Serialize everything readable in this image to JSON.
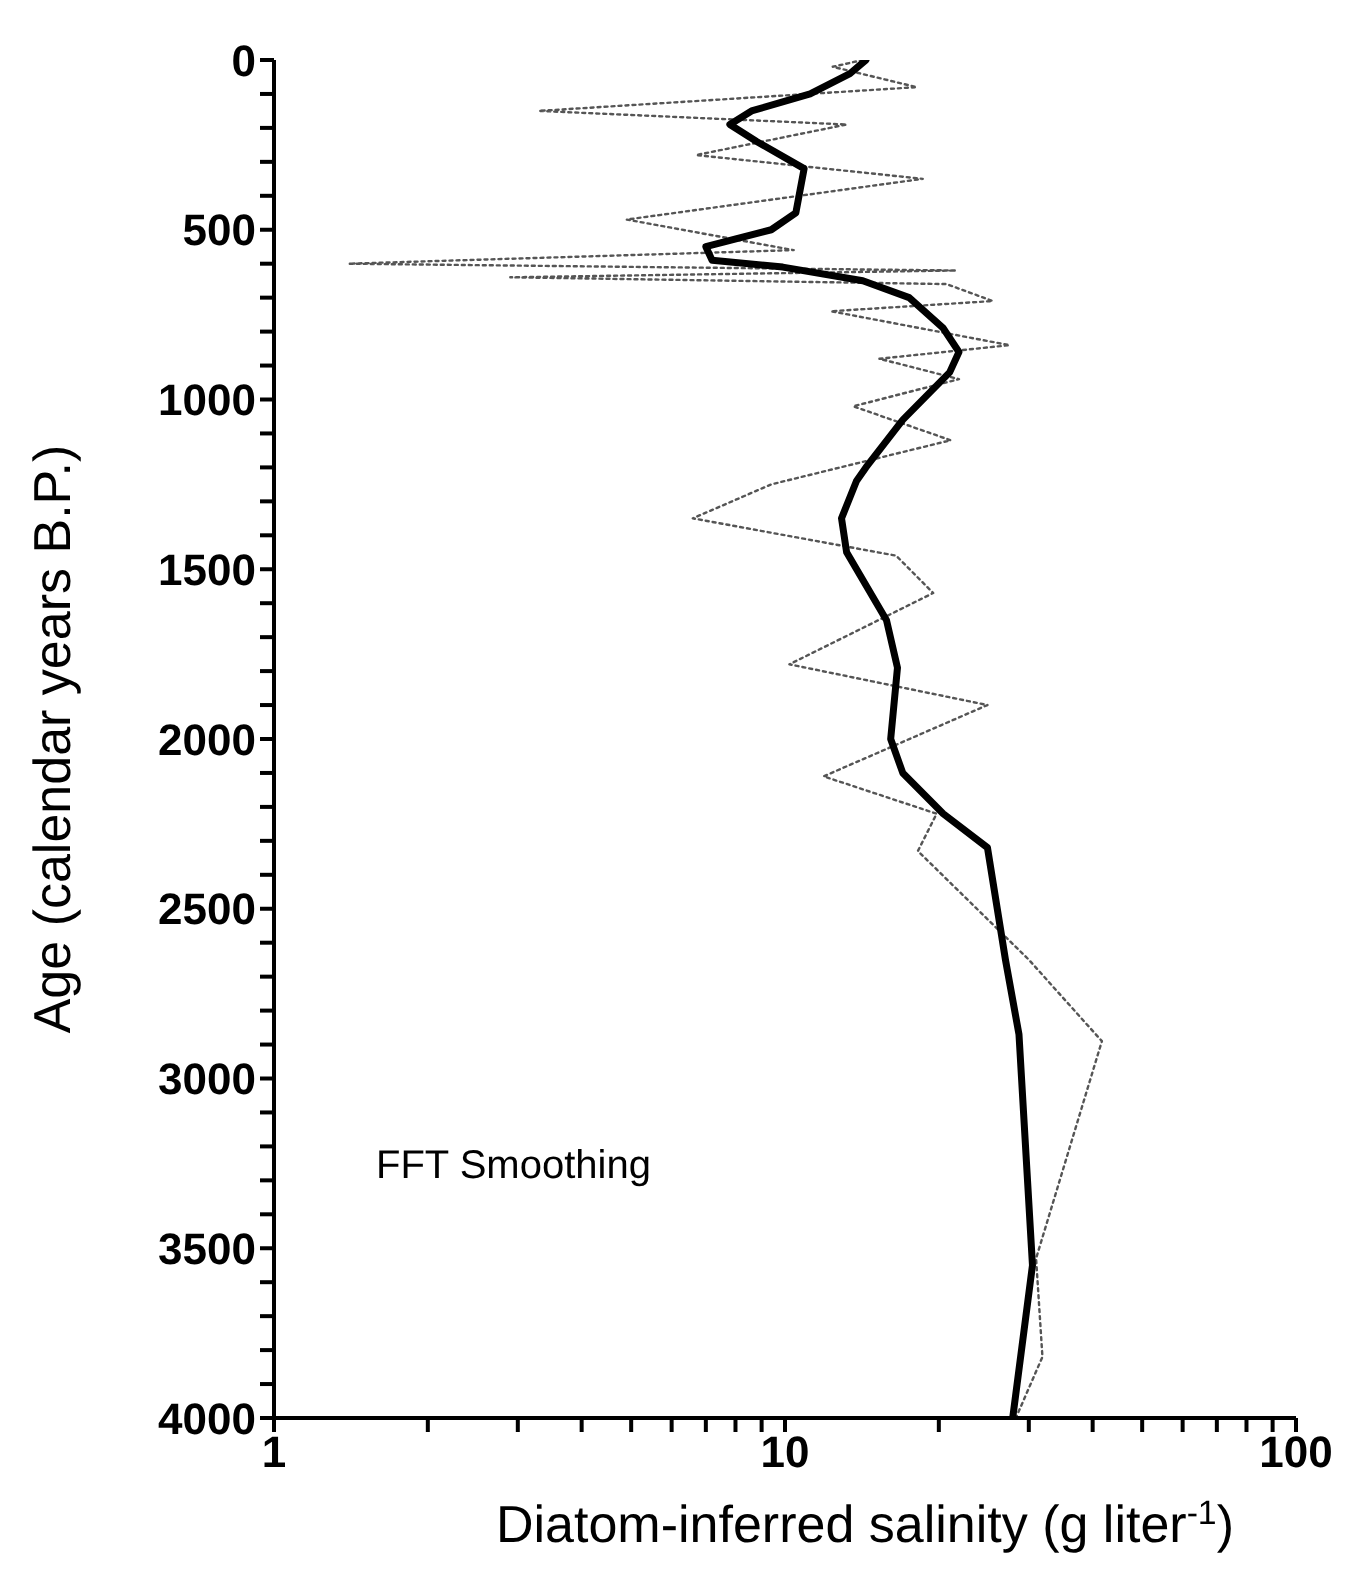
{
  "chart_data": {
    "type": "line",
    "xlabel": "Diatom-inferred salinity  (g liter$^{-1}$)",
    "ylabel": "Age (calendar years B.P.)",
    "log": "x",
    "xlim": [
      1,
      100
    ],
    "ylim": [
      4000,
      0
    ],
    "xticks": [
      1,
      {
        "value": 2,
        "label": null
      },
      {
        "value": 3,
        "label": null
      },
      {
        "value": 4,
        "label": null
      },
      {
        "value": 5,
        "label": null
      },
      {
        "value": 6,
        "label": null
      },
      {
        "value": 7,
        "label": null
      },
      {
        "value": 8,
        "label": null
      },
      {
        "value": 9,
        "label": null
      },
      10,
      {
        "value": 20,
        "label": null
      },
      {
        "value": 30,
        "label": null
      },
      {
        "value": 40,
        "label": null
      },
      {
        "value": 50,
        "label": null
      },
      {
        "value": 60,
        "label": null
      },
      {
        "value": 70,
        "label": null
      },
      {
        "value": 80,
        "label": null
      },
      {
        "value": 90,
        "label": null
      },
      100
    ],
    "yticks": [
      0,
      {
        "value": 100,
        "label": null
      },
      {
        "value": 200,
        "label": null
      },
      {
        "value": 300,
        "label": null
      },
      {
        "value": 400,
        "label": null
      },
      500,
      {
        "value": 600,
        "label": null
      },
      {
        "value": 700,
        "label": null
      },
      {
        "value": 800,
        "label": null
      },
      {
        "value": 900,
        "label": null
      },
      1000,
      {
        "value": 1100,
        "label": null
      },
      {
        "value": 1200,
        "label": null
      },
      {
        "value": 1300,
        "label": null
      },
      {
        "value": 1400,
        "label": null
      },
      1500,
      {
        "value": 1600,
        "label": null
      },
      {
        "value": 1700,
        "label": null
      },
      {
        "value": 1800,
        "label": null
      },
      {
        "value": 1900,
        "label": null
      },
      2000,
      {
        "value": 2100,
        "label": null
      },
      {
        "value": 2200,
        "label": null
      },
      {
        "value": 2300,
        "label": null
      },
      {
        "value": 2400,
        "label": null
      },
      2500,
      {
        "value": 2600,
        "label": null
      },
      {
        "value": 2700,
        "label": null
      },
      {
        "value": 2800,
        "label": null
      },
      {
        "value": 2900,
        "label": null
      },
      3000,
      {
        "value": 3100,
        "label": null
      },
      {
        "value": 3200,
        "label": null
      },
      {
        "value": 3300,
        "label": null
      },
      {
        "value": 3400,
        "label": null
      },
      3500,
      {
        "value": 3600,
        "label": null
      },
      {
        "value": 3700,
        "label": null
      },
      {
        "value": 3800,
        "label": null
      },
      {
        "value": 3900,
        "label": null
      },
      4000
    ],
    "marker": "none",
    "annotations": [
      "FFT Smoothing"
    ],
    "series": [
      {
        "color": "#555555",
        "line_style": "dotted",
        "x": [
          14.2,
          12.4,
          18.1,
          3.3,
          13.2,
          6.7,
          18.6,
          4.9,
          10.4,
          1.4,
          21.6,
          2.9,
          20.7,
          25.5,
          12.3,
          27.5,
          15.3,
          21.9,
          13.6,
          21.1,
          9.4,
          6.6,
          16.5,
          19.5,
          10.2,
          24.9,
          11.9,
          19.8,
          18.2,
          30,
          41.7,
          31,
          31.9,
          28.3
        ],
        "values": [
          0,
          20,
          80,
          150,
          190,
          280,
          350,
          470,
          560,
          600,
          620,
          640,
          660,
          710,
          740,
          840,
          880,
          940,
          1020,
          1120,
          1250,
          1350,
          1460,
          1570,
          1780,
          1900,
          2110,
          2220,
          2330,
          2650,
          2890,
          3530,
          3820,
          4000
        ]
      },
      {
        "color": "#000000",
        "line_style": "solid",
        "x": [
          14.4,
          13.4,
          11.2,
          8.6,
          7.8,
          8.8,
          10.9,
          10.5,
          9.4,
          7.0,
          7.2,
          9.9,
          14.2,
          17.5,
          20.4,
          21.9,
          21.0,
          17.0,
          14.4,
          13.8,
          12.9,
          13.2,
          15.8,
          16.6,
          16.1,
          17.0,
          20.4,
          24.9,
          27.0,
          28.7,
          30.5,
          27.9
        ],
        "values": [
          0,
          40,
          100,
          150,
          190,
          240,
          320,
          450,
          500,
          550,
          590,
          610,
          650,
          700,
          790,
          860,
          920,
          1060,
          1200,
          1240,
          1350,
          1450,
          1650,
          1790,
          2000,
          2100,
          2220,
          2320,
          2650,
          2870,
          3550,
          4000
        ]
      }
    ]
  }
}
